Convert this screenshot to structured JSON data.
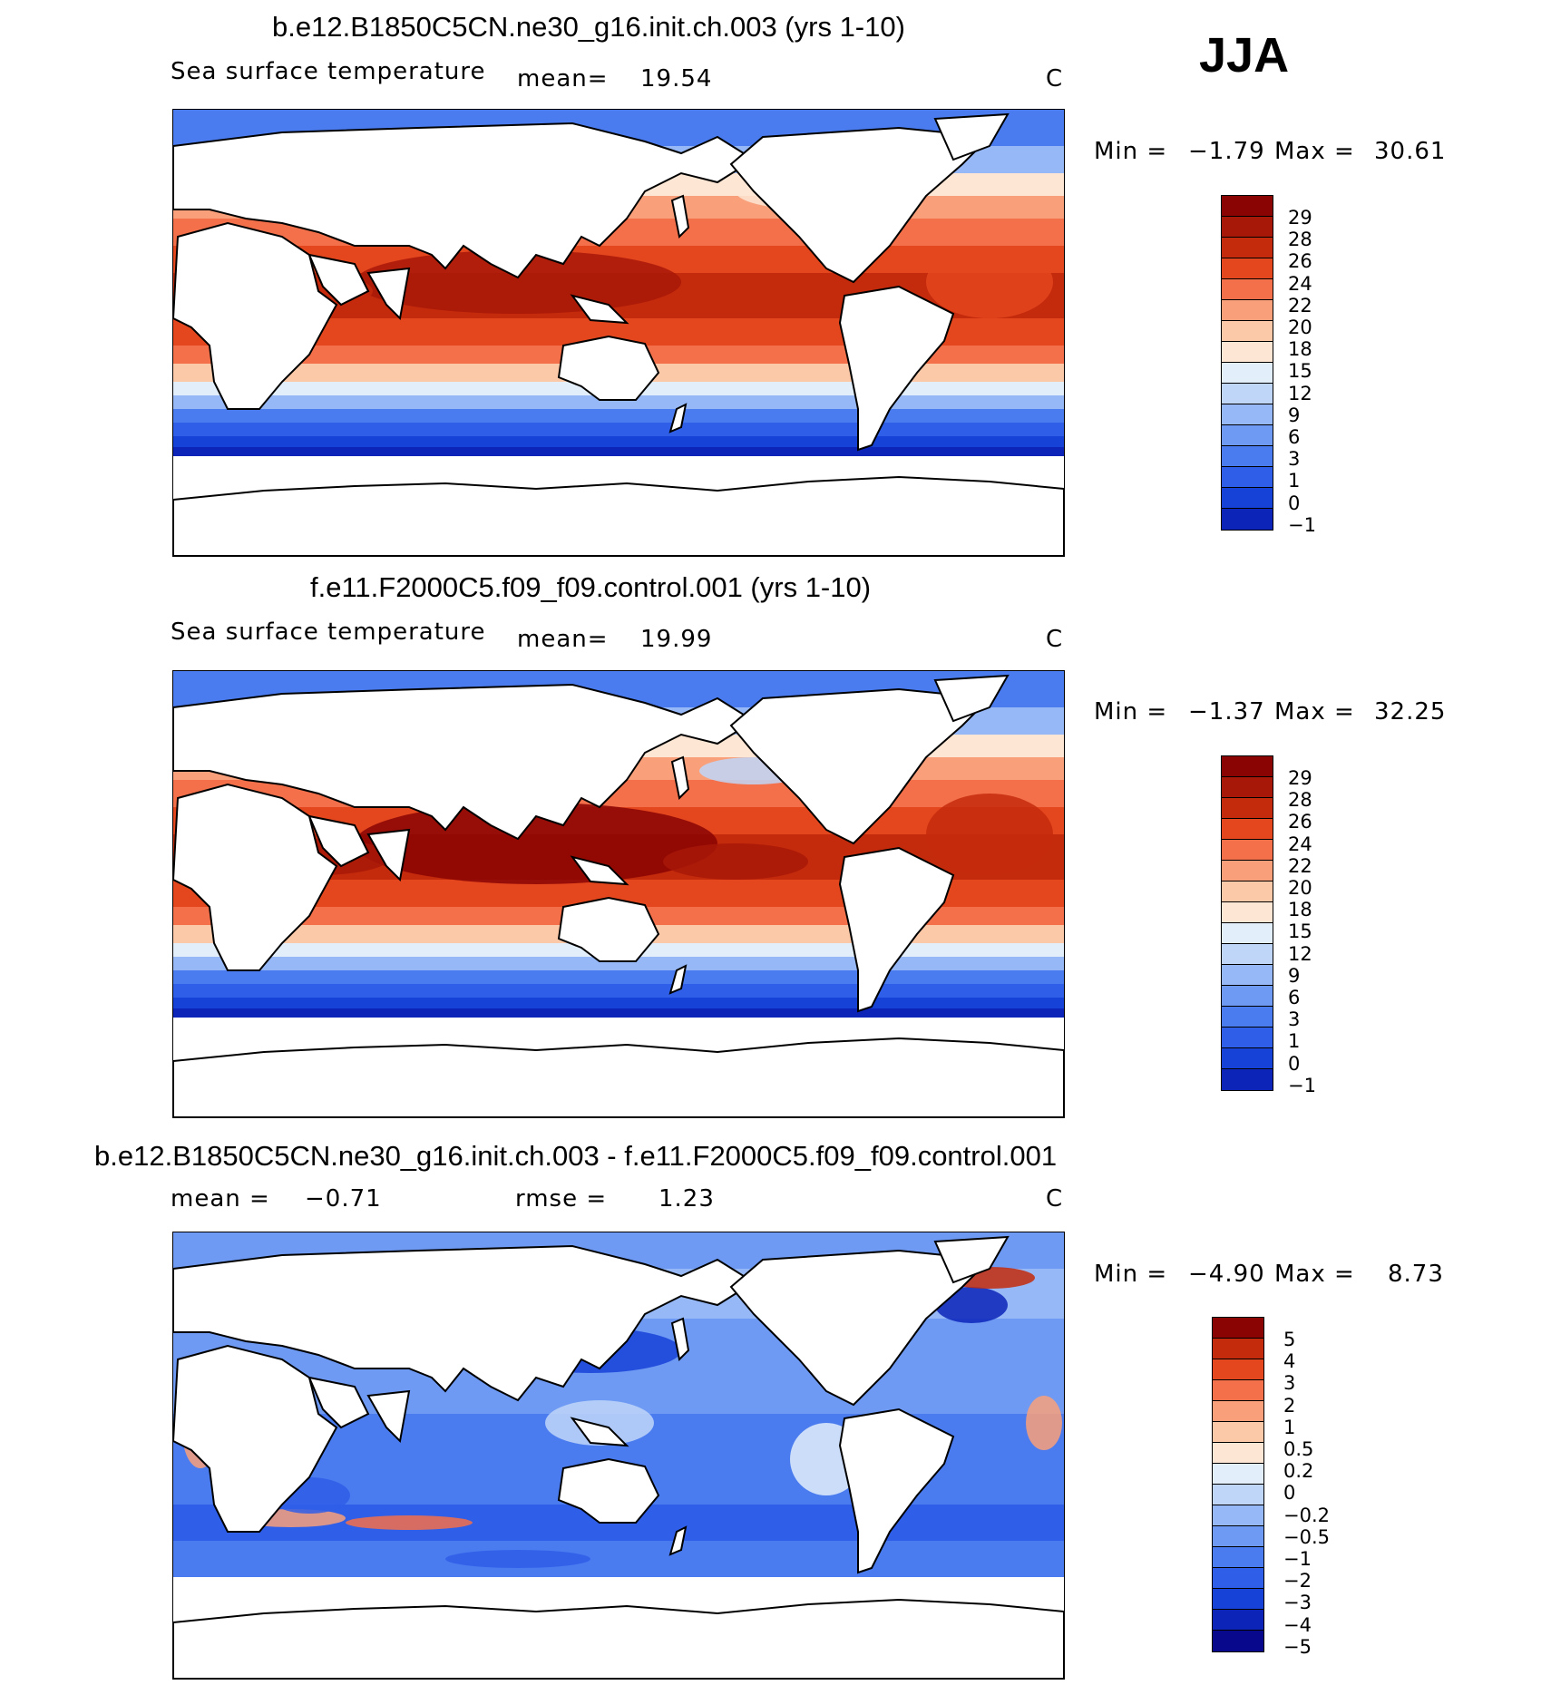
{
  "season": "JJA",
  "colors": {
    "sst_scale": [
      "#08088c",
      "#0c24b8",
      "#1742d8",
      "#2f5ee8",
      "#4a7cf0",
      "#6e9af4",
      "#96b8f6",
      "#c0d6f8",
      "#e2eefa",
      "#fde6d4",
      "#fcc9a8",
      "#f9a07a",
      "#f4704a",
      "#e4471e",
      "#c42a0c",
      "#a81808",
      "#8a0404"
    ],
    "diff_scale": [
      "#08088c",
      "#0c24b8",
      "#1742d8",
      "#2f5ee8",
      "#4a7cf0",
      "#6e9af4",
      "#96b8f6",
      "#c0d6f8",
      "#e2eefa",
      "#fde6d4",
      "#fcc9a8",
      "#f9a07a",
      "#f4704a",
      "#e4471e",
      "#c42a0c",
      "#8a0404"
    ]
  },
  "panels": [
    {
      "id": "model",
      "title": "b.e12.B1850C5CN.ne30_g16.init.ch.003 (yrs 1-10)",
      "variable": "Sea surface temperature",
      "stat_label": "mean=",
      "stat_value": "19.54",
      "units": "C",
      "min_label": "Min =",
      "min_value": "−1.79",
      "max_label": "Max =",
      "max_value": "30.61",
      "map_label": "SST field map (model)",
      "colorbar_ticks": [
        "29",
        "28",
        "26",
        "24",
        "22",
        "20",
        "18",
        "15",
        "12",
        "9",
        "6",
        "3",
        "1",
        "0",
        "−1"
      ]
    },
    {
      "id": "obs",
      "title": "f.e11.F2000C5.f09_f09.control.001 (yrs 1-10)",
      "variable": "Sea surface temperature",
      "stat_label": "mean=",
      "stat_value": "19.99",
      "units": "C",
      "min_label": "Min =",
      "min_value": "−1.37",
      "max_label": "Max =",
      "max_value": "32.25",
      "map_label": "SST field map (control)",
      "colorbar_ticks": [
        "29",
        "28",
        "26",
        "24",
        "22",
        "20",
        "18",
        "15",
        "12",
        "9",
        "6",
        "3",
        "1",
        "0",
        "−1"
      ]
    },
    {
      "id": "diff",
      "title": "b.e12.B1850C5CN.ne30_g16.init.ch.003 - f.e11.F2000C5.f09_f09.control.001",
      "stat_label": "mean =",
      "stat_value": "−0.71",
      "rmse_label": "rmse =",
      "rmse_value": "1.23",
      "units": "C",
      "min_label": "Min =",
      "min_value": "−4.90",
      "max_label": "Max =",
      "max_value": "8.73",
      "map_label": "SST difference map",
      "colorbar_ticks": [
        "5",
        "4",
        "3",
        "2",
        "1",
        "0.5",
        "0.2",
        "0",
        "−0.2",
        "−0.5",
        "−1",
        "−2",
        "−3",
        "−4",
        "−5"
      ]
    }
  ]
}
